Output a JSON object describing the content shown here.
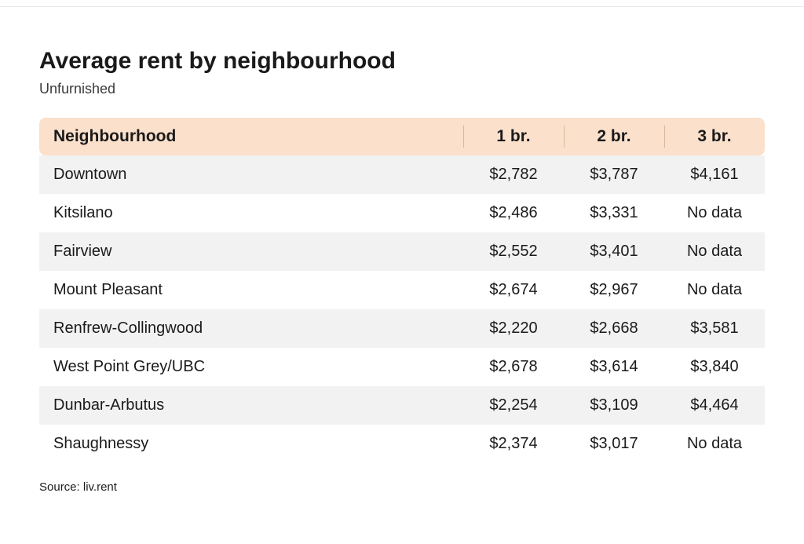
{
  "title": "Average rent by neighbourhood",
  "subtitle": "Unfurnished",
  "source": "Source: liv.rent",
  "table": {
    "type": "table",
    "header_bg": "#fbe0cc",
    "header_divider": "#d9b89c",
    "row_alt_bg": "#f2f2f2",
    "row_bg": "#ffffff",
    "text_color": "#1a1a1a",
    "title_fontsize": 30,
    "header_fontsize": 21,
    "cell_fontsize": 20,
    "columns": [
      {
        "label": "Neighbourhood",
        "align": "left"
      },
      {
        "label": "1 br.",
        "align": "center"
      },
      {
        "label": "2 br.",
        "align": "center"
      },
      {
        "label": "3 br.",
        "align": "center"
      }
    ],
    "rows": [
      {
        "name": "Downtown",
        "br1": "$2,782",
        "br2": "$3,787",
        "br3": "$4,161"
      },
      {
        "name": "Kitsilano",
        "br1": "$2,486",
        "br2": "$3,331",
        "br3": "No data"
      },
      {
        "name": "Fairview",
        "br1": "$2,552",
        "br2": "$3,401",
        "br3": "No data"
      },
      {
        "name": "Mount Pleasant",
        "br1": "$2,674",
        "br2": "$2,967",
        "br3": "No data"
      },
      {
        "name": "Renfrew-Collingwood",
        "br1": "$2,220",
        "br2": "$2,668",
        "br3": "$3,581"
      },
      {
        "name": "West Point Grey/UBC",
        "br1": "$2,678",
        "br2": "$3,614",
        "br3": "$3,840"
      },
      {
        "name": "Dunbar-Arbutus",
        "br1": "$2,254",
        "br2": "$3,109",
        "br3": "$4,464"
      },
      {
        "name": "Shaughnessy",
        "br1": "$2,374",
        "br2": "$3,017",
        "br3": "No data"
      }
    ]
  }
}
